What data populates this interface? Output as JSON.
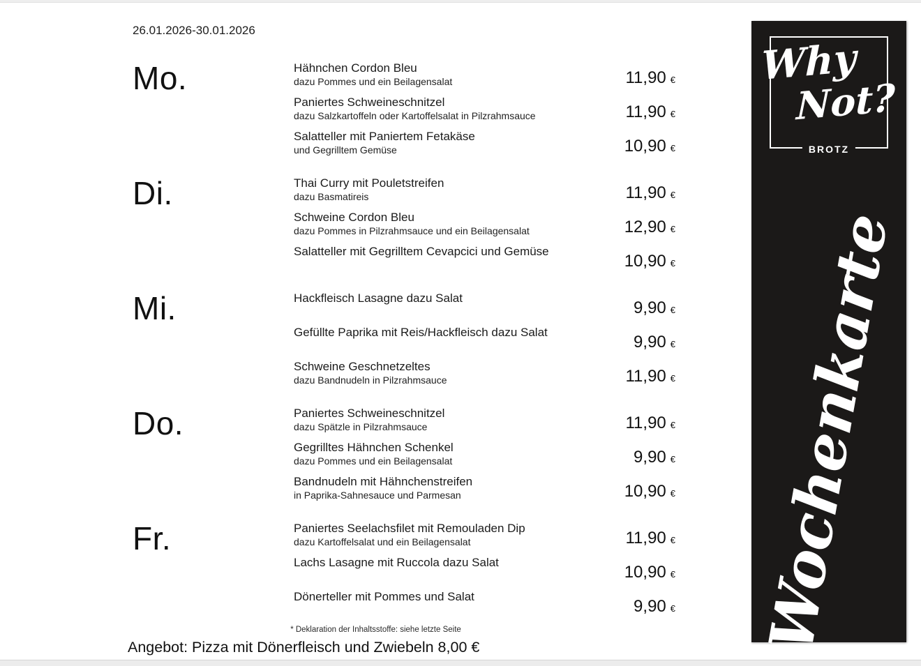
{
  "page": {
    "date_range": "26.01.2026-30.01.2026",
    "footnote": "* Deklaration der Inhaltsstoffe: siehe letzte Seite",
    "offer": "Angebot: Pizza mit Dönerfleisch und Zwiebeln 8,00 €"
  },
  "menu": {
    "currency_symbol": "€",
    "days": [
      {
        "label": "Mo.",
        "dishes": [
          {
            "title": "Hähnchen Cordon Bleu",
            "subtitle": "dazu Pommes und ein Beilagensalat",
            "price": "11,90"
          },
          {
            "title": "Paniertes Schweineschnitzel",
            "subtitle": "dazu Salzkartoffeln oder Kartoffelsalat in Pilzrahmsauce",
            "price": "11,90"
          },
          {
            "title": "Salatteller mit Paniertem Fetakäse",
            "subtitle": "und Gegrilltem Gemüse",
            "price": "10,90"
          }
        ]
      },
      {
        "label": "Di.",
        "dishes": [
          {
            "title": "Thai Curry mit Pouletstreifen",
            "subtitle": "dazu Basmatireis",
            "price": "11,90"
          },
          {
            "title": "Schweine Cordon Bleu",
            "subtitle": "dazu Pommes in Pilzrahmsauce und ein Beilagensalat",
            "price": "12,90"
          },
          {
            "title": "Salatteller mit Gegrilltem Cevapcici und Gemüse",
            "subtitle": "",
            "price": "10,90"
          }
        ]
      },
      {
        "label": "Mi.",
        "dishes": [
          {
            "title": "Hackfleisch Lasagne dazu Salat",
            "subtitle": "",
            "price": "9,90"
          },
          {
            "title": "Gefüllte Paprika mit Reis/Hackfleisch dazu Salat",
            "subtitle": "",
            "price": "9,90"
          },
          {
            "title": "Schweine Geschnetzeltes",
            "subtitle": "dazu Bandnudeln in Pilzrahmsauce",
            "price": "11,90"
          }
        ]
      },
      {
        "label": "Do.",
        "dishes": [
          {
            "title": "Paniertes Schweineschnitzel",
            "subtitle": "dazu Spätzle in Pilzrahmsauce",
            "price": "11,90"
          },
          {
            "title": "Gegrilltes Hähnchen Schenkel",
            "subtitle": "dazu Pommes und ein Beilagensalat",
            "price": "9,90"
          },
          {
            "title": "Bandnudeln mit Hähnchenstreifen",
            "subtitle": "in Paprika-Sahnesauce und Parmesan",
            "price": "10,90"
          }
        ]
      },
      {
        "label": "Fr.",
        "dishes": [
          {
            "title": "Paniertes Seelachsfilet mit Remouladen Dip",
            "subtitle": "dazu Kartoffelsalat und ein Beilagensalat",
            "price": "11,90"
          },
          {
            "title": "Lachs Lasagne mit Ruccola dazu Salat",
            "subtitle": "",
            "price": "10,90"
          },
          {
            "title": "Dönerteller mit Pommes und Salat",
            "subtitle": "",
            "price": "9,90"
          }
        ]
      }
    ]
  },
  "banner": {
    "background": "#1b1918",
    "foreground": "#ffffff",
    "logo_line1": "Why",
    "logo_line2": "Not?",
    "logo_sub": "BROTZ",
    "vertical_text": "Wochenkarte"
  }
}
